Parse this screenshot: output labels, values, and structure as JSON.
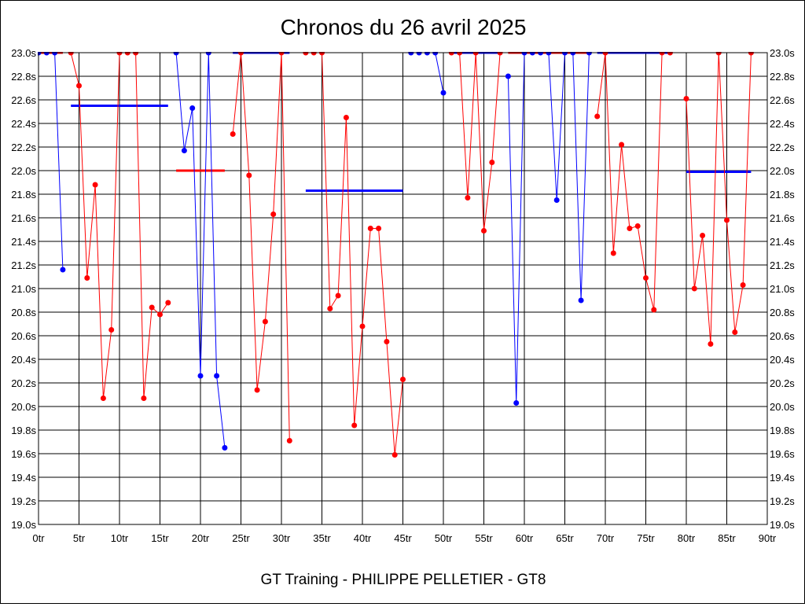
{
  "chart_data": {
    "type": "line",
    "title": "Chronos du 26 avril 2025",
    "xlabel": "GT Training - PHILIPPE PELLETIER - GT8",
    "ylabel": "",
    "xlim": [
      0,
      90
    ],
    "ylim": [
      19.0,
      23.0
    ],
    "x_ticks": [
      "0tr",
      "5tr",
      "10tr",
      "15tr",
      "20tr",
      "25tr",
      "30tr",
      "35tr",
      "40tr",
      "45tr",
      "50tr",
      "55tr",
      "60tr",
      "65tr",
      "70tr",
      "75tr",
      "80tr",
      "85tr",
      "90tr"
    ],
    "y_ticks": [
      "19.0s",
      "19.2s",
      "19.4s",
      "19.6s",
      "19.8s",
      "20.0s",
      "20.2s",
      "20.4s",
      "20.6s",
      "20.8s",
      "21.0s",
      "21.2s",
      "21.4s",
      "21.6s",
      "21.8s",
      "22.0s",
      "22.2s",
      "22.4s",
      "22.6s",
      "22.8s",
      "23.0s"
    ],
    "grid": true,
    "colors": {
      "blue": "#0000ff",
      "red": "#ff0000"
    },
    "segments": [
      {
        "color": "blue",
        "points": [
          [
            0,
            23.0
          ],
          [
            1,
            23.0
          ],
          [
            2,
            23.0
          ],
          [
            3,
            21.16
          ]
        ],
        "avg": {
          "color": "red",
          "from": 0,
          "to": 3,
          "value": 23.0
        }
      },
      {
        "color": "red",
        "points": [
          [
            4,
            23.0
          ],
          [
            5,
            22.72
          ],
          [
            6,
            21.09
          ],
          [
            7,
            21.88
          ],
          [
            8,
            20.07
          ],
          [
            9,
            20.65
          ],
          [
            10,
            23.0
          ],
          [
            11,
            23.0
          ],
          [
            12,
            23.0
          ],
          [
            13,
            20.07
          ],
          [
            14,
            20.84
          ],
          [
            15,
            20.78
          ],
          [
            16,
            20.88
          ]
        ],
        "avg": {
          "color": "blue",
          "from": 4,
          "to": 16,
          "value": 22.55
        }
      },
      {
        "color": "blue",
        "points": [
          [
            17,
            23.0
          ],
          [
            18,
            22.17
          ],
          [
            19,
            22.53
          ],
          [
            20,
            20.26
          ],
          [
            21,
            23.0
          ],
          [
            22,
            20.26
          ],
          [
            23,
            19.65
          ]
        ],
        "avg": {
          "color": "red",
          "from": 17,
          "to": 23,
          "value": 22.0
        }
      },
      {
        "color": "red",
        "points": [
          [
            24,
            22.31
          ],
          [
            25,
            23.0
          ],
          [
            26,
            21.96
          ],
          [
            27,
            20.14
          ],
          [
            28,
            20.72
          ],
          [
            29,
            21.63
          ],
          [
            30,
            23.0
          ],
          [
            31,
            19.71
          ]
        ],
        "avg": {
          "color": "blue",
          "from": 24,
          "to": 31,
          "value": 23.0
        }
      },
      {
        "color": "red",
        "points": [
          [
            33,
            23.0
          ],
          [
            34,
            23.0
          ],
          [
            35,
            23.0
          ],
          [
            36,
            20.83
          ],
          [
            37,
            20.94
          ],
          [
            38,
            22.45
          ],
          [
            39,
            19.84
          ],
          [
            40,
            20.68
          ],
          [
            41,
            21.51
          ],
          [
            42,
            21.51
          ],
          [
            43,
            20.55
          ],
          [
            44,
            19.59
          ],
          [
            45,
            20.23
          ]
        ],
        "avg": {
          "color": "blue",
          "from": 33,
          "to": 45,
          "value": 21.83
        }
      },
      {
        "color": "blue",
        "points": [
          [
            46,
            23.0
          ],
          [
            47,
            23.0
          ],
          [
            48,
            23.0
          ],
          [
            49,
            23.0
          ],
          [
            50,
            22.66
          ]
        ],
        "avg": null
      },
      {
        "color": "red",
        "points": [
          [
            51,
            23.0
          ],
          [
            52,
            23.0
          ],
          [
            53,
            21.77
          ],
          [
            54,
            23.0
          ],
          [
            55,
            21.49
          ],
          [
            56,
            22.07
          ],
          [
            57,
            23.0
          ]
        ],
        "avg": {
          "color": "blue",
          "from": 51,
          "to": 57,
          "value": 23.0
        }
      },
      {
        "color": "blue",
        "points": [
          [
            58,
            22.8
          ],
          [
            59,
            20.03
          ],
          [
            60,
            23.0
          ],
          [
            61,
            23.0
          ],
          [
            62,
            23.0
          ],
          [
            63,
            23.0
          ],
          [
            64,
            21.75
          ],
          [
            65,
            23.0
          ],
          [
            66,
            23.0
          ],
          [
            67,
            20.9
          ],
          [
            68,
            23.0
          ]
        ],
        "avg": {
          "color": "red",
          "from": 58,
          "to": 68,
          "value": 23.0
        }
      },
      {
        "color": "red",
        "points": [
          [
            69,
            22.46
          ],
          [
            70,
            23.0
          ],
          [
            71,
            21.3
          ],
          [
            72,
            22.22
          ],
          [
            73,
            21.51
          ],
          [
            74,
            21.53
          ],
          [
            75,
            21.09
          ],
          [
            76,
            20.82
          ],
          [
            77,
            23.0
          ],
          [
            78,
            23.0
          ]
        ],
        "avg": {
          "color": "blue",
          "from": 69,
          "to": 78,
          "value": 23.0
        }
      },
      {
        "color": "red",
        "points": [
          [
            80,
            22.61
          ],
          [
            81,
            21.0
          ],
          [
            82,
            21.45
          ],
          [
            83,
            20.53
          ],
          [
            84,
            23.0
          ],
          [
            85,
            21.58
          ],
          [
            86,
            20.63
          ],
          [
            87,
            21.03
          ],
          [
            88,
            23.0
          ]
        ],
        "avg": {
          "color": "blue",
          "from": 80,
          "to": 88,
          "value": 21.99
        }
      }
    ]
  }
}
